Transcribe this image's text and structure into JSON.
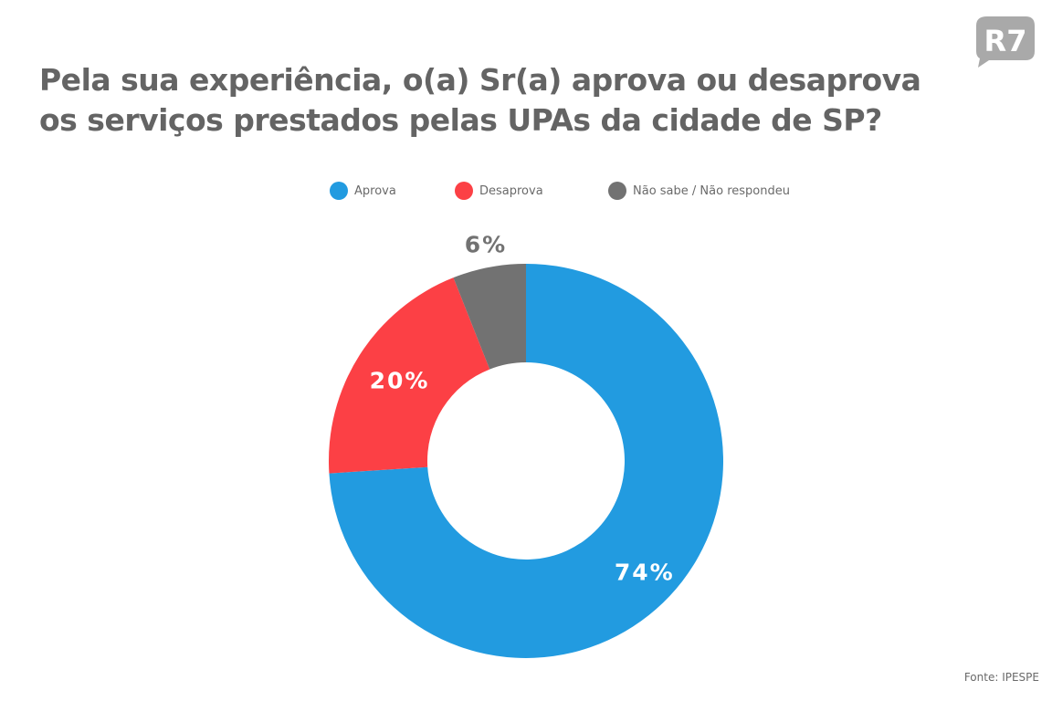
{
  "header": {
    "title": "Pela sua experiência, o(a) Sr(a) aprova ou desaprova os serviços prestados pelas UPAs da cidade de SP?",
    "logo_text": "R7"
  },
  "legend": [
    {
      "label": "Aprova",
      "color": "#229be0"
    },
    {
      "label": "Desaprova",
      "color": "#fc4045"
    },
    {
      "label": "Não sabe / Não respondeu",
      "color": "#727272"
    }
  ],
  "source": "Fonte: IPESPE",
  "chart_data": {
    "type": "pie",
    "variant": "donut",
    "title": "Pela sua experiência, o(a) Sr(a) aprova ou desaprova os serviços prestados pelas UPAs da cidade de SP?",
    "categories": [
      "Aprova",
      "Desaprova",
      "Não sabe / Não respondeu"
    ],
    "values": [
      74,
      20,
      6
    ],
    "labels": [
      "74%",
      "20%",
      "6%"
    ],
    "colors": [
      "#229be0",
      "#fc4045",
      "#727272"
    ],
    "label_colors": [
      "#ffffff",
      "#ffffff",
      "#727272"
    ],
    "start_angle": "12 o'clock",
    "direction": "clockwise",
    "legend_position": "top"
  }
}
